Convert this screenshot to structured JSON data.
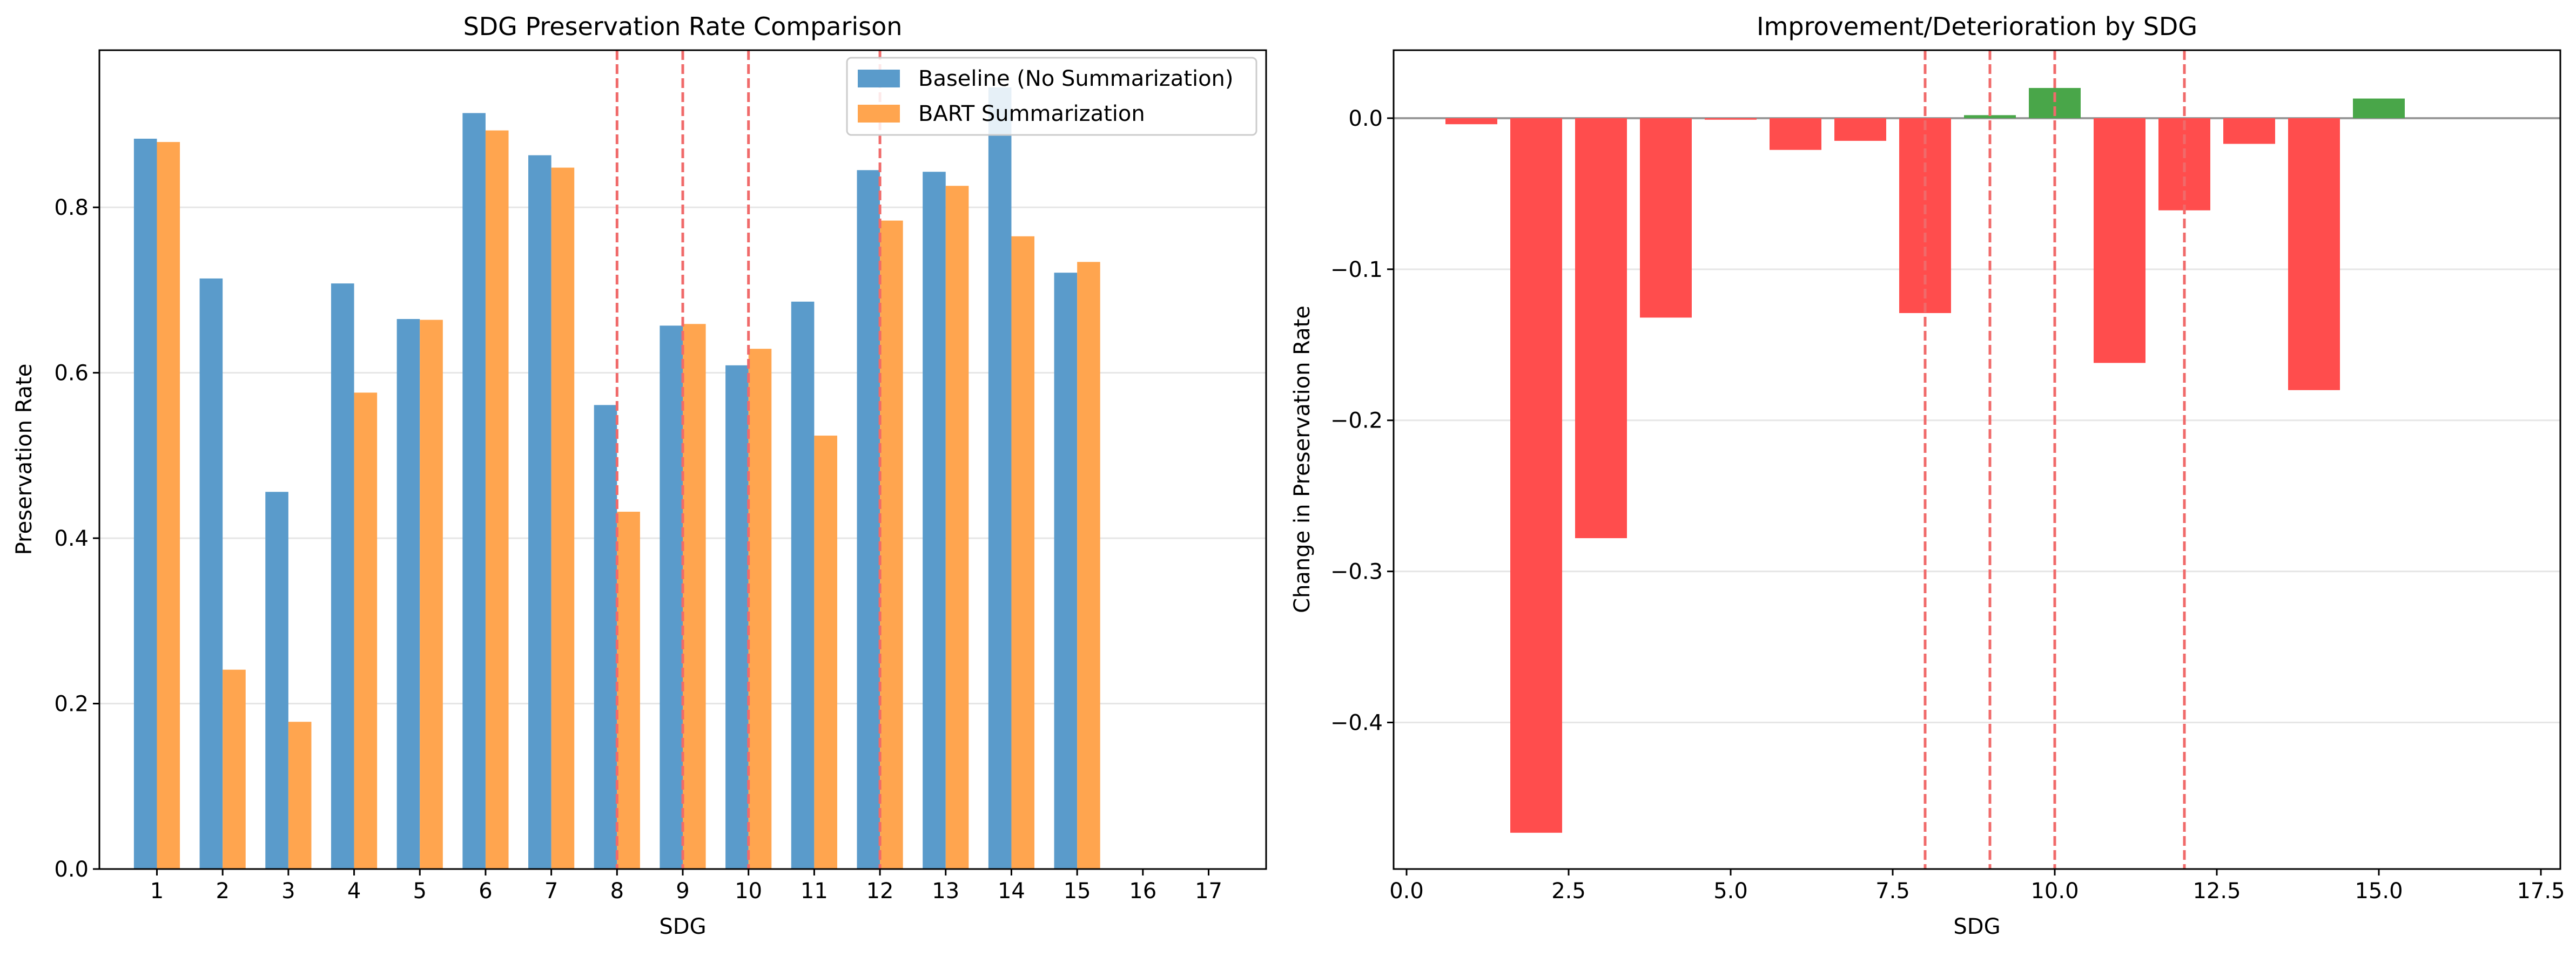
{
  "chart_data": [
    {
      "type": "bar",
      "title": "SDG Preservation Rate Comparison",
      "xlabel": "SDG",
      "ylabel": "Preservation Rate",
      "categories": [
        "1",
        "2",
        "3",
        "4",
        "5",
        "6",
        "7",
        "8",
        "9",
        "10",
        "11",
        "12",
        "13",
        "14",
        "15",
        "16",
        "17"
      ],
      "series": [
        {
          "name": "Baseline (No Summarization)",
          "color": "#5a9bcb",
          "values": [
            0.883,
            0.714,
            0.456,
            0.708,
            0.665,
            0.914,
            0.863,
            0.561,
            0.657,
            0.609,
            0.686,
            0.845,
            0.843,
            0.945,
            0.721,
            null,
            null
          ]
        },
        {
          "name": "BART Summarization",
          "color": "#ffa54f",
          "values": [
            0.879,
            0.241,
            0.178,
            0.576,
            0.664,
            0.893,
            0.848,
            0.432,
            0.659,
            0.629,
            0.524,
            0.784,
            0.826,
            0.765,
            0.734,
            null,
            null
          ]
        }
      ],
      "ylim": [
        0,
        0.99
      ],
      "yticks": [
        0.0,
        0.2,
        0.4,
        0.6,
        0.8
      ],
      "ytick_labels": [
        "0.0",
        "0.2",
        "0.4",
        "0.6",
        "0.8"
      ],
      "reference_lines_x": [
        8,
        9,
        10,
        12
      ],
      "reference_line_color": "#f06a6a",
      "grid": "y",
      "legend_position": "top-right"
    },
    {
      "type": "bar",
      "title": "Improvement/Deterioration by SDG",
      "xlabel": "SDG",
      "ylabel": "Change in Preservation Rate",
      "x": [
        1,
        2,
        3,
        4,
        5,
        6,
        7,
        8,
        9,
        10,
        11,
        12,
        13,
        14,
        15
      ],
      "values": [
        -0.004,
        -0.473,
        -0.278,
        -0.132,
        -0.001,
        -0.021,
        -0.015,
        -0.129,
        0.002,
        0.02,
        -0.162,
        -0.061,
        -0.017,
        -0.18,
        0.013
      ],
      "positive_color": "#49a649",
      "negative_color": "#ff4d4d",
      "xlim": [
        -0.2,
        17.8
      ],
      "ylim": [
        -0.497,
        0.045
      ],
      "xticks": [
        0.0,
        2.5,
        5.0,
        7.5,
        10.0,
        12.5,
        15.0,
        17.5
      ],
      "xtick_labels": [
        "0.0",
        "2.5",
        "5.0",
        "7.5",
        "10.0",
        "12.5",
        "15.0",
        "17.5"
      ],
      "yticks": [
        0.0,
        -0.1,
        -0.2,
        -0.3,
        -0.4
      ],
      "ytick_labels": [
        "0.0",
        "−0.1",
        "−0.2",
        "−0.3",
        "−0.4"
      ],
      "reference_lines_x": [
        8,
        9,
        10,
        12
      ],
      "reference_line_color": "#f06a6a",
      "zero_line_color": "#999999",
      "grid": "y"
    }
  ]
}
